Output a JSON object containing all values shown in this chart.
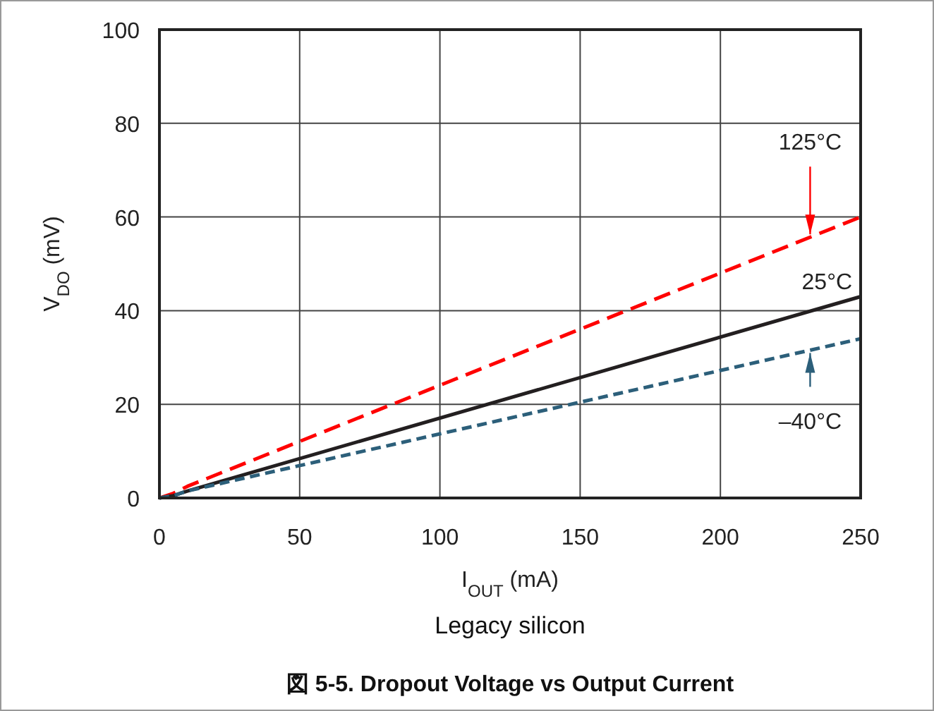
{
  "chart_data": {
    "type": "line",
    "title": "図 5-5. Dropout Voltage vs Output Current",
    "xlabel": "I$_{OUT}$ (mA)",
    "ylabel": "V$_{DO}$ (mV)",
    "annotations": [
      "Legacy silicon"
    ],
    "xlim": [
      0,
      250
    ],
    "ylim": [
      0,
      100
    ],
    "xticks": [
      0,
      50,
      100,
      150,
      200,
      250
    ],
    "yticks": [
      0,
      20,
      40,
      60,
      80,
      100
    ],
    "grid": true,
    "series": [
      {
        "name": "125°C",
        "color": "#ff0000",
        "line_style": "dashed",
        "x": [
          0,
          5,
          10,
          250
        ],
        "values": [
          0,
          1,
          2.5,
          60
        ]
      },
      {
        "name": "25°C",
        "color": "#231f20",
        "line_style": "solid",
        "x": [
          0,
          5,
          10,
          250
        ],
        "values": [
          0,
          0.5,
          1.5,
          43
        ]
      },
      {
        "name": "–40°C",
        "color": "#2c5f7a",
        "line_style": "dotted",
        "x": [
          0,
          5,
          10,
          250
        ],
        "values": [
          0,
          0.5,
          1.5,
          34
        ]
      }
    ]
  }
}
